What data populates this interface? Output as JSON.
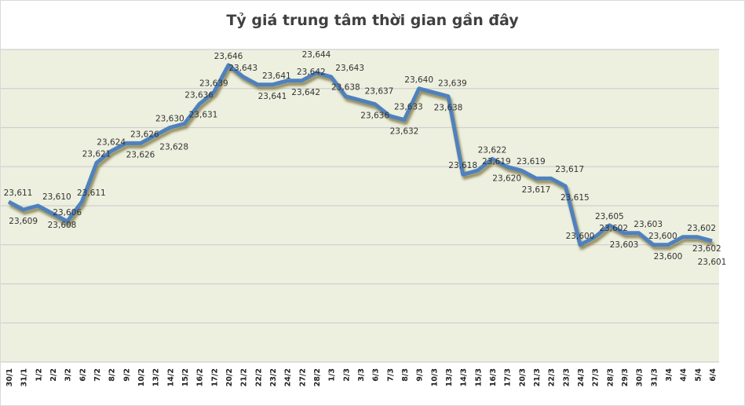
{
  "chart_data": {
    "type": "line",
    "title": "Tỷ giá trung tâm thời gian gần đây",
    "xlabel": "",
    "ylabel": "",
    "ylim": [
      23570,
      23650
    ],
    "grid": true,
    "y_tick_labels_shown": false,
    "legend": "none",
    "line_color": "#4f81bd",
    "plot_background": "#edf0df",
    "categories": [
      "30/1",
      "31/1",
      "1/2",
      "2/2",
      "3/2",
      "6/2",
      "7/2",
      "8/2",
      "9/2",
      "10/2",
      "13/2",
      "14/2",
      "15/2",
      "16/2",
      "17/2",
      "20/2",
      "21/2",
      "22/2",
      "23/2",
      "24/2",
      "27/2",
      "28/2",
      "1/3",
      "2/3",
      "3/3",
      "6/3",
      "7/3",
      "8/3",
      "9/3",
      "10/3",
      "13/3",
      "14/3",
      "15/3",
      "16/3",
      "17/3",
      "20/3",
      "21/3",
      "22/3",
      "23/3",
      "24/3",
      "27/3",
      "28/3",
      "29/3",
      "30/3",
      "31/3",
      "3/4",
      "4/4",
      "5/4",
      "6/4"
    ],
    "values": [
      23611,
      23609,
      23610,
      23608,
      23606,
      23611,
      23621,
      23624,
      23626,
      23626,
      23628,
      23630,
      23631,
      23636,
      23639,
      23646,
      23643,
      23641,
      23641,
      23642,
      23642,
      23644,
      23643,
      23638,
      23637,
      23636,
      23633,
      23632,
      23640,
      23639,
      23638,
      23618,
      23619,
      23622,
      23620,
      23619,
      23617,
      23617,
      23615,
      23600,
      23602,
      23605,
      23603,
      23603,
      23600,
      23600,
      23602,
      23602,
      23601
    ]
  }
}
